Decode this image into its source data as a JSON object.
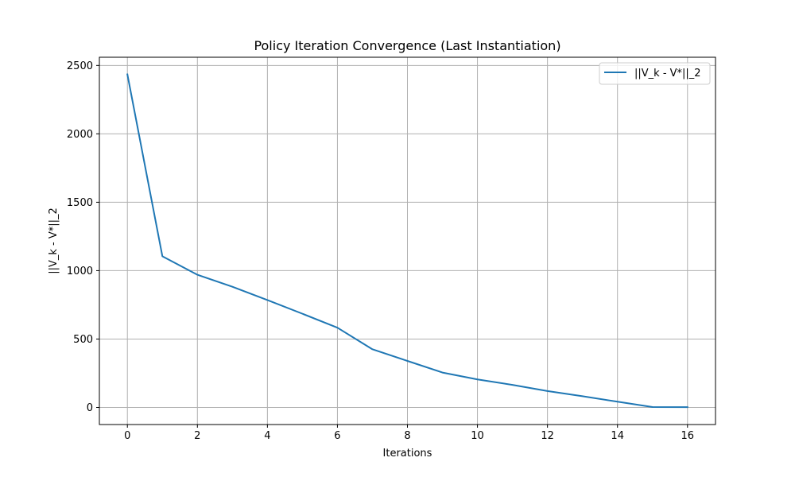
{
  "chart_data": {
    "type": "line",
    "title": "Policy Iteration Convergence (Last Instantiation)",
    "xlabel": "Iterations",
    "ylabel": "||V_k - V*||_2",
    "xlim": [
      -0.8,
      16.8
    ],
    "ylim": [
      -125,
      2560
    ],
    "xticks": [
      0,
      2,
      4,
      6,
      8,
      10,
      12,
      14,
      16
    ],
    "yticks": [
      0,
      500,
      1000,
      1500,
      2000,
      2500
    ],
    "grid": true,
    "legend_position": "top-right",
    "series": [
      {
        "name": "||V_k - V*||_2",
        "color": "#1f77b4",
        "x": [
          0,
          1,
          2,
          3,
          4,
          5,
          6,
          7,
          8,
          9,
          10,
          11,
          12,
          13,
          14,
          15,
          16
        ],
        "y": [
          2435,
          1105,
          970,
          882,
          785,
          685,
          583,
          425,
          340,
          255,
          205,
          165,
          120,
          82,
          42,
          3,
          2
        ]
      }
    ]
  }
}
